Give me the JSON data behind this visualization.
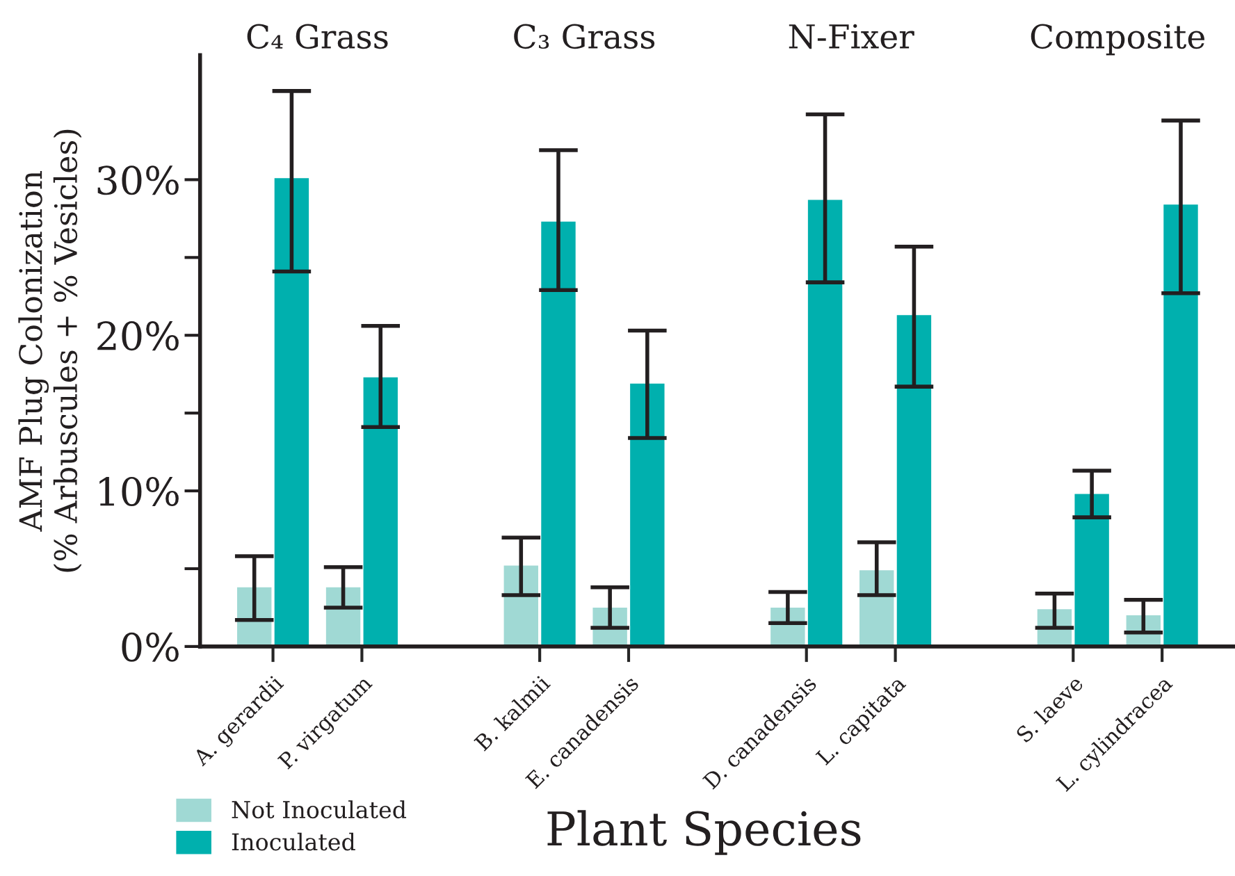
{
  "chart_data": {
    "type": "bar",
    "xlabel": "Plant Species",
    "ylabel": "AMF Plug Colonization\n(% Arbuscules + % Vesicles)",
    "categories": [
      "A. gerardii",
      "P. virgatum",
      null,
      "B. kalmii",
      "E. canadensis",
      null,
      "D. canadensis",
      "L. capitata",
      null,
      "S. laeve",
      "L. cylindracea"
    ],
    "series": [
      {
        "name": "Not Inoculated",
        "color": "#a0d9d4",
        "values": [
          3.8,
          3.8,
          null,
          5.2,
          2.5,
          null,
          2.5,
          4.9,
          null,
          2.4,
          2.0
        ],
        "errors": [
          [
            1.7,
            5.8
          ],
          [
            2.5,
            5.1
          ],
          null,
          [
            3.3,
            7.0
          ],
          [
            1.2,
            3.8
          ],
          null,
          [
            1.5,
            3.5
          ],
          [
            3.3,
            6.7
          ],
          null,
          [
            1.2,
            3.4
          ],
          [
            0.9,
            3.0
          ]
        ]
      },
      {
        "name": "Inoculated",
        "color": "#00b0ae",
        "values": [
          30.1,
          17.3,
          null,
          27.3,
          16.9,
          null,
          28.7,
          21.3,
          null,
          9.8,
          28.4
        ],
        "errors": [
          [
            24.1,
            35.7
          ],
          [
            14.1,
            20.6
          ],
          null,
          [
            22.9,
            31.9
          ],
          [
            13.4,
            20.3
          ],
          null,
          [
            23.4,
            34.2
          ],
          [
            16.7,
            25.7
          ],
          null,
          [
            8.3,
            11.3
          ],
          [
            22.7,
            33.8
          ]
        ]
      }
    ],
    "ylim": [
      0,
      38
    ],
    "yticks": [
      {
        "value": 0,
        "label": "0%"
      },
      {
        "value": 5,
        "label": null
      },
      {
        "value": 10,
        "label": "10%"
      },
      {
        "value": 15,
        "label": null
      },
      {
        "value": 20,
        "label": "20%"
      },
      {
        "value": 25,
        "label": null
      },
      {
        "value": 30,
        "label": "30%"
      }
    ],
    "annotations": [
      "C₄ Grass",
      "C₃ Grass",
      "N-Fixer",
      "Composite"
    ],
    "grid": false,
    "legend": "bottom left"
  }
}
